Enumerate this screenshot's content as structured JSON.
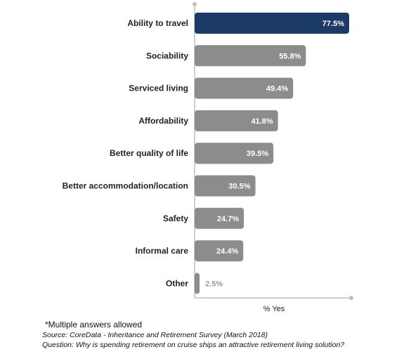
{
  "chart_data": {
    "type": "bar",
    "orientation": "horizontal",
    "categories": [
      "Ability to travel",
      "Sociability",
      "Serviced living",
      "Affordability",
      "Better quality of life",
      "Better accommodation/location",
      "Safety",
      "Informal care",
      "Other"
    ],
    "values": [
      77.5,
      55.8,
      49.4,
      41.8,
      39.5,
      30.5,
      24.7,
      24.4,
      2.5
    ],
    "value_labels": [
      "77.5%",
      "55.8%",
      "49.4%",
      "41.8%",
      "39.5%",
      "30.5%",
      "24.7%",
      "24.4%",
      "2.5%"
    ],
    "xlabel": "% Yes",
    "xlim": [
      0,
      80
    ],
    "grid": false,
    "colors": {
      "highlight": "#1b3a66",
      "default": "#8c8c8c",
      "axis": "#bfbfbf",
      "outside_label": "#9a9a9a"
    }
  },
  "notes": {
    "multiple": "*Multiple answers allowed",
    "source": "Source: CoreData - Inheritance and Retirement Survey (March 2018)",
    "question": "Question: Why is spending retirement on cruise ships an attractive retirement living solution?"
  }
}
